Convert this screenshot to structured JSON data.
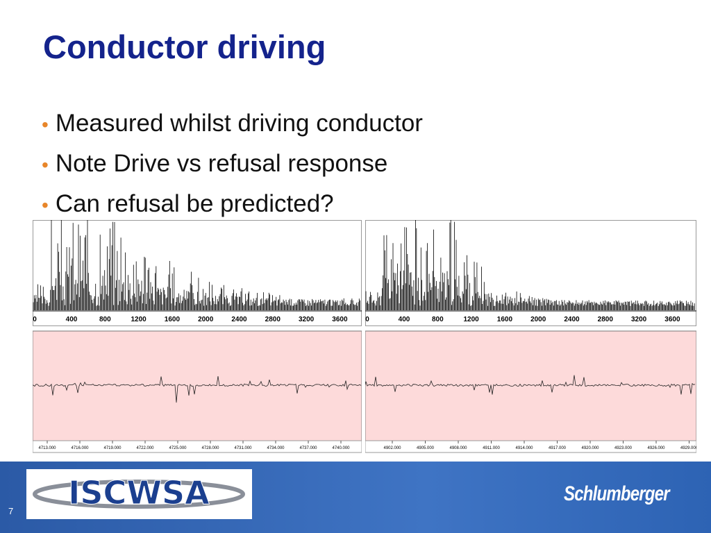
{
  "header": {
    "title": "Conductor driving"
  },
  "bullets": [
    "Measured whilst driving conductor",
    "Note Drive vs refusal response",
    "Can refusal be predicted?"
  ],
  "panels": [
    {
      "spectrum_ticks": [
        "0",
        "400",
        "800",
        "1200",
        "1600",
        "2000",
        "2400",
        "2800",
        "3200",
        "3600"
      ],
      "time_ticks": [
        "4713.000",
        "4716.000",
        "4719.000",
        "4722.000",
        "4725.000",
        "4728.000",
        "4731.000",
        "4734.000",
        "4737.000",
        "4740.000"
      ]
    },
    {
      "spectrum_ticks": [
        "0",
        "400",
        "800",
        "1200",
        "1600",
        "2000",
        "2400",
        "2800",
        "3200",
        "3600"
      ],
      "time_ticks": [
        "4902.000",
        "4905.000",
        "4908.000",
        "4911.000",
        "4914.000",
        "4917.000",
        "4920.000",
        "4923.000",
        "4926.000",
        "4929.000"
      ]
    }
  ],
  "footer": {
    "page_number": "7",
    "left_logo": "ISCWSA",
    "right_logo": "Schlumberger"
  }
}
